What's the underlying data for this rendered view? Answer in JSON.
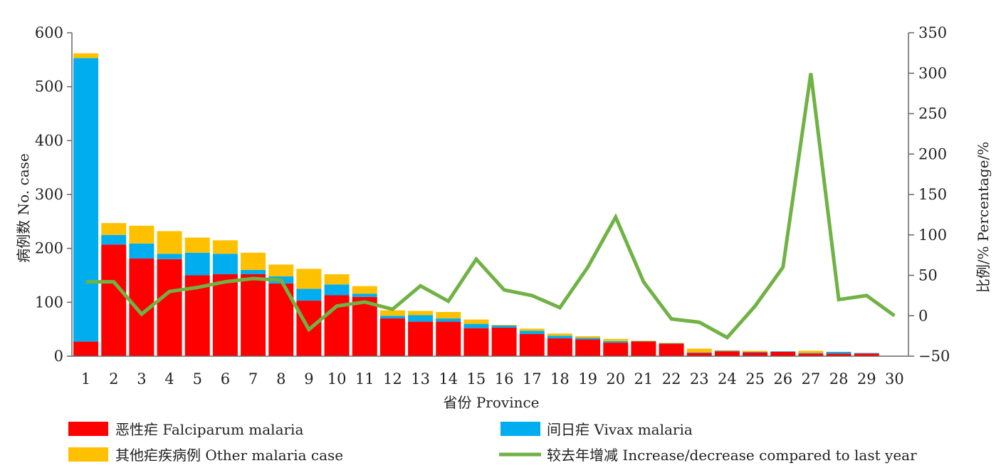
{
  "chart_data": {
    "type": "bar",
    "stacked": true,
    "categories": [
      "1",
      "2",
      "3",
      "4",
      "5",
      "6",
      "7",
      "8",
      "9",
      "10",
      "11",
      "12",
      "13",
      "14",
      "15",
      "16",
      "17",
      "18",
      "19",
      "20",
      "21",
      "22",
      "23",
      "24",
      "25",
      "26",
      "27",
      "28",
      "29",
      "30"
    ],
    "series": [
      {
        "name": "恶性疟 Falciparum malaria",
        "type": "bar",
        "axis": "left",
        "color": "#ff0000",
        "values": [
          27,
          207,
          181,
          180,
          150,
          152,
          152,
          135,
          103,
          113,
          110,
          70,
          64,
          64,
          52,
          53,
          41,
          33,
          31,
          25,
          27,
          23,
          6,
          9,
          7,
          8,
          5,
          5,
          5,
          0
        ]
      },
      {
        "name": "间日疟 Vivax malaria",
        "type": "bar",
        "axis": "left",
        "color": "#00aeef",
        "values": [
          526,
          18,
          28,
          10,
          42,
          38,
          8,
          13,
          22,
          20,
          6,
          5,
          12,
          6,
          8,
          4,
          6,
          5,
          3,
          3,
          1,
          1,
          1,
          1,
          1,
          1,
          1,
          3,
          1,
          0
        ]
      },
      {
        "name": "其他疟疾病例 Other malaria case",
        "type": "bar",
        "axis": "left",
        "color": "#ffc000",
        "values": [
          9,
          22,
          33,
          42,
          28,
          25,
          32,
          22,
          37,
          19,
          14,
          10,
          8,
          12,
          8,
          1,
          4,
          4,
          3,
          4,
          1,
          1,
          7,
          1,
          2,
          0,
          4,
          0,
          0,
          0
        ]
      },
      {
        "name": "较去年增减 Increase/decrease compared to last year",
        "type": "line",
        "axis": "right",
        "color": "#70b244",
        "values": [
          42,
          42,
          2,
          30,
          35,
          42,
          46,
          44,
          -17,
          12,
          17,
          8,
          37,
          18,
          70,
          32,
          25,
          10,
          60,
          122,
          42,
          -4,
          -8,
          -27,
          12,
          60,
          300,
          20,
          25,
          0
        ]
      }
    ],
    "xlabel": "省份 Province",
    "ylabel": "病例数 No. case",
    "y2label": "比例/% Percentage/%",
    "ylim": [
      0,
      600
    ],
    "yticks": [
      0,
      100,
      200,
      300,
      400,
      500,
      600
    ],
    "y2lim": [
      -50,
      350
    ],
    "y2ticks": [
      -50,
      0,
      50,
      100,
      150,
      200,
      250,
      300,
      350
    ],
    "grid": false,
    "legend_position": "bottom"
  }
}
